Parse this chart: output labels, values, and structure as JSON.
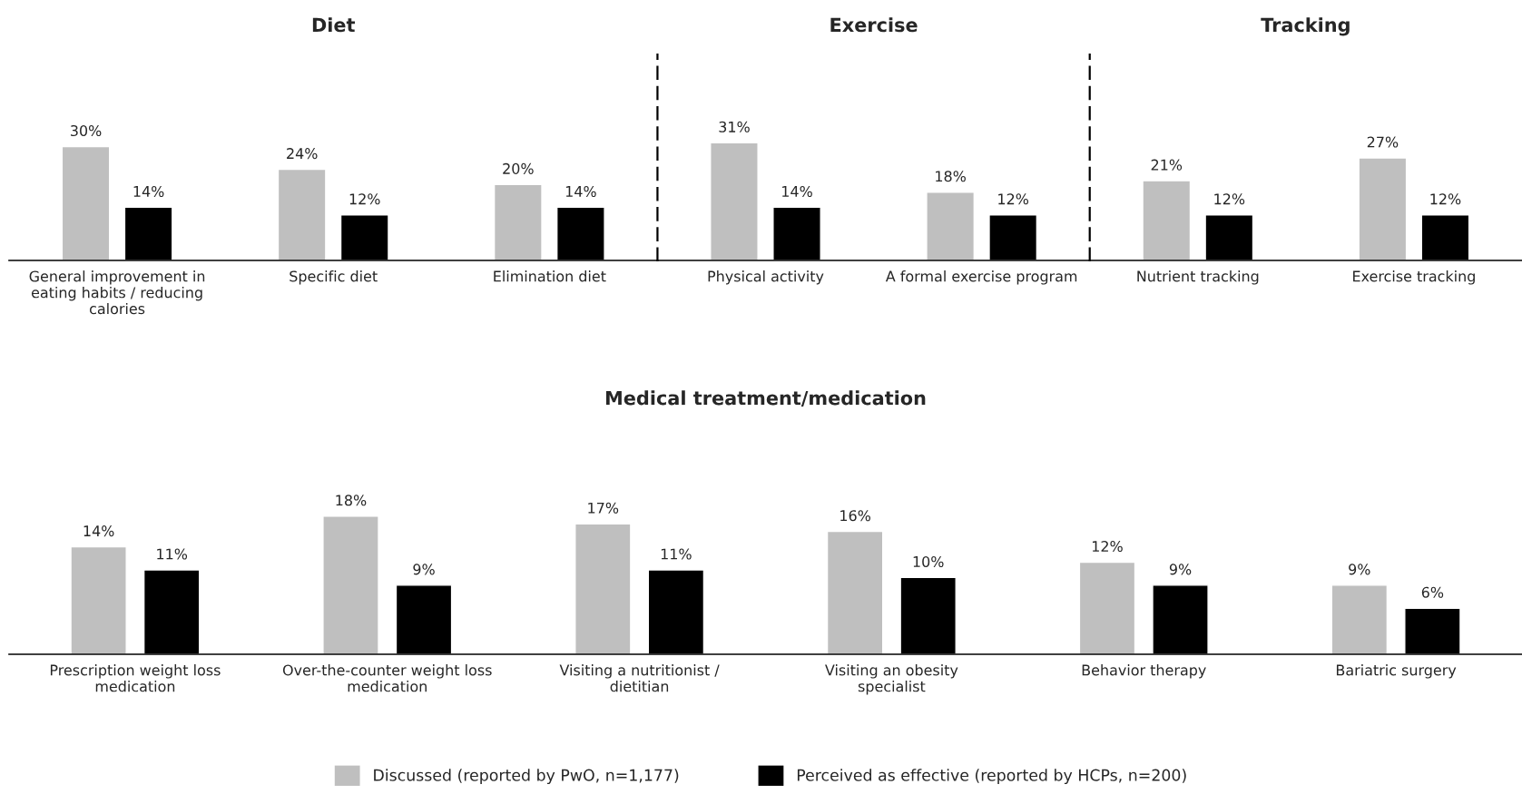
{
  "chart_data": [
    {
      "type": "bar",
      "title": "Diet",
      "categories": [
        "General improvement in eating habits / reducing calories",
        "Specific diet",
        "Elimination diet"
      ],
      "legend": "bottom",
      "tick_labels": "x",
      "series": [
        {
          "name": "Discussed (reported by PwO, n=1,177)",
          "color": "#bfbfbf",
          "values": [
            30,
            24,
            20
          ],
          "value_labels": [
            "30%",
            "24%",
            "20%"
          ]
        },
        {
          "name": "Perceived as effective (reported by HCPs, n=200)",
          "color": "#000000",
          "values": [
            14,
            12,
            14
          ],
          "value_labels": [
            "14%",
            "12%",
            "14%"
          ]
        }
      ]
    },
    {
      "type": "bar",
      "title": "Exercise",
      "categories": [
        "Physical activity",
        "A formal exercise program"
      ],
      "tick_labels": "x",
      "series": [
        {
          "color": "#bfbfbf",
          "values": [
            31,
            18
          ],
          "value_labels": [
            "31%",
            "18%"
          ]
        },
        {
          "color": "#000000",
          "values": [
            14,
            12
          ],
          "value_labels": [
            "14%",
            "12%"
          ]
        }
      ]
    },
    {
      "type": "bar",
      "title": "Tracking",
      "categories": [
        "Nutrient tracking",
        "Exercise tracking"
      ],
      "tick_labels": "x",
      "series": [
        {
          "color": "#bfbfbf",
          "values": [
            21,
            27
          ],
          "value_labels": [
            "21%",
            "27%"
          ]
        },
        {
          "color": "#000000",
          "values": [
            12,
            12
          ],
          "value_labels": [
            "12%",
            "12%"
          ]
        }
      ]
    },
    {
      "type": "bar",
      "title": "Medical treatment/medication",
      "categories": [
        "Prescription weight loss medication",
        "Over-the-counter weight loss medication",
        "Visiting a nutritionist / dietitian",
        "Visiting an obesity specialist",
        "Behavior therapy",
        "Bariatric surgery"
      ],
      "tick_labels": "x",
      "series": [
        {
          "color": "#bfbfbf",
          "values": [
            14,
            18,
            17,
            16,
            12,
            9
          ],
          "value_labels": [
            "14%",
            "18%",
            "17%",
            "16%",
            "12%",
            "9%"
          ]
        },
        {
          "color": "#000000",
          "values": [
            11,
            9,
            11,
            10,
            9,
            6
          ],
          "value_labels": [
            "11%",
            "9%",
            "11%",
            "10%",
            "9%",
            "6%"
          ]
        }
      ]
    }
  ]
}
